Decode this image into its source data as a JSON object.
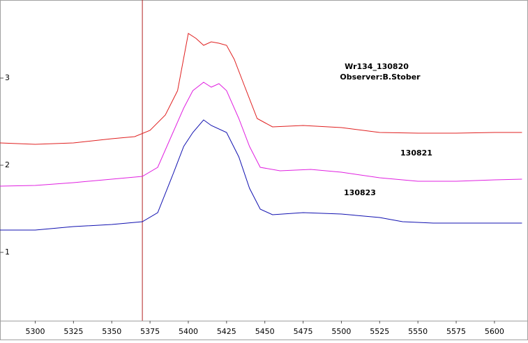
{
  "chart_data": {
    "type": "line",
    "title": "Wr134_130820",
    "subtitle": "Observer:B.Stober",
    "xlim": [
      5277,
      5621
    ],
    "ylim": [
      0.216,
      3.896
    ],
    "xticks": [
      5300,
      5325,
      5350,
      5375,
      5400,
      5425,
      5450,
      5475,
      5500,
      5525,
      5550,
      5575,
      5600
    ],
    "yticks": [
      1,
      2,
      3
    ],
    "marker_x": 5370,
    "marker_color": "#b22222",
    "series": [
      {
        "name": "Wr134_130820",
        "color": "#e02020",
        "x": [
          5277,
          5300,
          5325,
          5350,
          5365,
          5375,
          5385,
          5393,
          5400,
          5405,
          5410,
          5415,
          5420,
          5425,
          5430,
          5437,
          5445,
          5455,
          5475,
          5500,
          5525,
          5550,
          5575,
          5600,
          5618
        ],
        "values": [
          2.256,
          2.24,
          2.256,
          2.304,
          2.328,
          2.4,
          2.576,
          2.856,
          3.512,
          3.456,
          3.376,
          3.416,
          3.4,
          3.376,
          3.216,
          2.896,
          2.536,
          2.44,
          2.456,
          2.432,
          2.376,
          2.368,
          2.368,
          2.376,
          2.376
        ]
      },
      {
        "name": "130821",
        "color": "#e020e0",
        "x": [
          5277,
          5300,
          5325,
          5350,
          5370,
          5380,
          5390,
          5397,
          5403,
          5410,
          5415,
          5420,
          5425,
          5433,
          5440,
          5447,
          5460,
          5480,
          5500,
          5525,
          5550,
          5575,
          5600,
          5618
        ],
        "values": [
          1.76,
          1.768,
          1.8,
          1.84,
          1.872,
          1.976,
          2.376,
          2.656,
          2.856,
          2.952,
          2.896,
          2.936,
          2.856,
          2.536,
          2.216,
          1.976,
          1.936,
          1.952,
          1.92,
          1.856,
          1.816,
          1.816,
          1.832,
          1.84
        ]
      },
      {
        "name": "130823",
        "color": "#1010b0",
        "x": [
          5277,
          5300,
          5325,
          5350,
          5370,
          5380,
          5390,
          5397,
          5403,
          5410,
          5415,
          5425,
          5433,
          5440,
          5447,
          5455,
          5475,
          5500,
          5525,
          5540,
          5560,
          5580,
          5600,
          5618
        ],
        "values": [
          1.256,
          1.256,
          1.296,
          1.32,
          1.352,
          1.456,
          1.896,
          2.216,
          2.376,
          2.52,
          2.456,
          2.376,
          2.096,
          1.736,
          1.496,
          1.432,
          1.456,
          1.44,
          1.4,
          1.352,
          1.336,
          1.336,
          1.336,
          1.336
        ]
      }
    ]
  }
}
